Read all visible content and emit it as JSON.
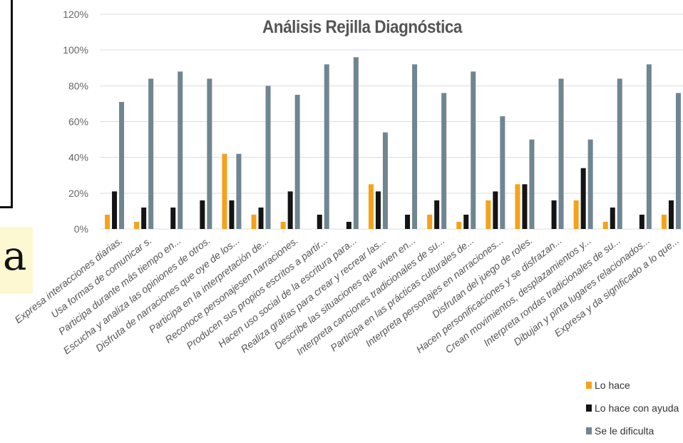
{
  "fragment": {
    "text": "a"
  },
  "chart_data": {
    "type": "bar",
    "title": "Análisis Rejilla Diagnóstica",
    "xlabel": "",
    "ylabel": "",
    "ylim": [
      0,
      120
    ],
    "yticks": [
      "0%",
      "20%",
      "40%",
      "60%",
      "80%",
      "100%",
      "120%"
    ],
    "grid": true,
    "legend_position": "bottom-right",
    "categories": [
      "Expresa  interacciones diarias.",
      "Usa formas de comunicar s.",
      "Participa durante más tiempo en...",
      "Escucha y analiza las opiniones de otros.",
      "Disfruta de narraciones que oye de los...",
      "Participa en la interpretación de...",
      "Reconoce personajesen narraciones.",
      "Producen sus propios escritos a partir...",
      "Hacen uso social de la escritura para...",
      "Realiza grafías para crear y recrear las...",
      "Describe las situaciones que viven en...",
      "Interpreta canciones tradicionales de su...",
      "Participa en las prácticas culturales de...",
      "Interpreta personajes en narraciones...",
      "Disfrutan del juego de roles.",
      "Hacen personificaciones y se disfrazan...",
      "Crean movimientos, desplazamientos y...",
      "Interpreta rondas tradicionales de su...",
      "Dibujan y pinta lugares relacionados...",
      "Expresa y da significado a lo que..."
    ],
    "series": [
      {
        "name": "Lo hace",
        "color": "#f5a21b",
        "values": [
          8,
          4,
          0,
          0,
          42,
          8,
          4,
          0,
          0,
          25,
          0,
          8,
          4,
          16,
          25,
          0,
          16,
          4,
          0,
          8
        ]
      },
      {
        "name": "Lo hace con ayuda",
        "color": "#141414",
        "values": [
          21,
          12,
          12,
          16,
          16,
          12,
          21,
          8,
          4,
          21,
          8,
          16,
          8,
          21,
          25,
          16,
          34,
          12,
          8,
          16
        ]
      },
      {
        "name": "Se le dificulta",
        "color": "#6f8592",
        "values": [
          71,
          84,
          88,
          84,
          42,
          80,
          75,
          92,
          96,
          54,
          92,
          76,
          88,
          63,
          50,
          84,
          50,
          84,
          92,
          76
        ]
      }
    ],
    "legend": [
      "Lo hace",
      "Lo hace con ayuda",
      "Se le dificulta"
    ]
  }
}
